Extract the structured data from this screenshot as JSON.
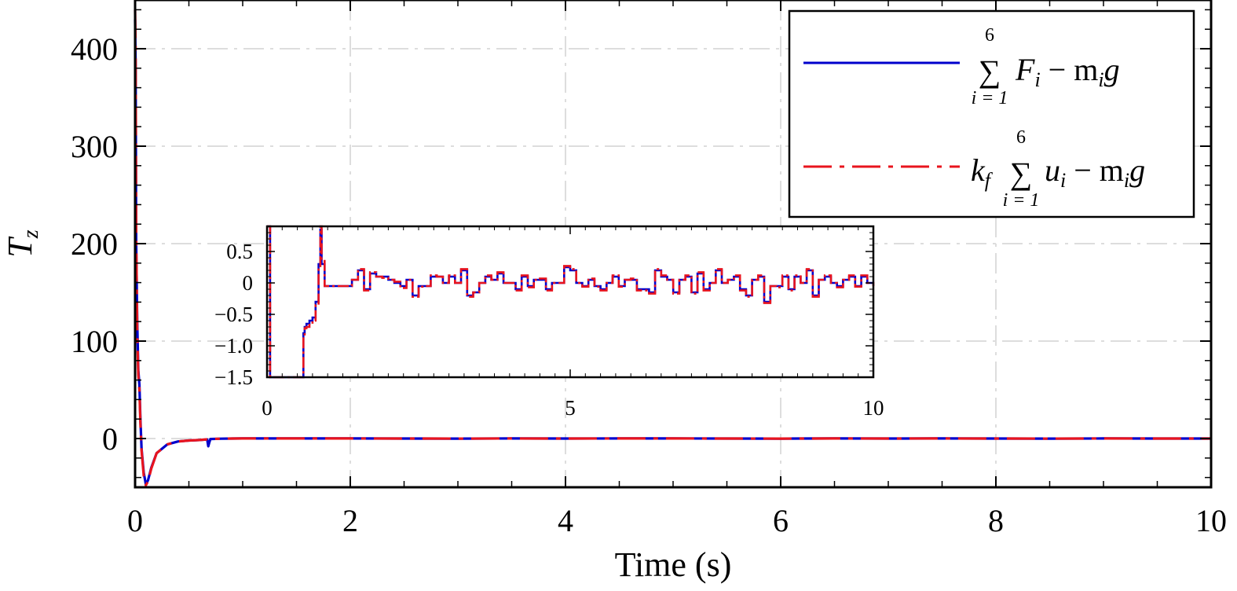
{
  "chart_data": [
    {
      "type": "line",
      "xlabel": "Time (s)",
      "ylabel": "T",
      "ylabel_subscript": "z",
      "xlim": [
        0,
        10
      ],
      "ylim": [
        -50,
        450
      ],
      "xticks": [
        0,
        2,
        4,
        6,
        8,
        10
      ],
      "xtick_labels": [
        "0",
        "2",
        "4",
        "6",
        "8",
        "10"
      ],
      "yticks": [
        0,
        100,
        200,
        300,
        400
      ],
      "ytick_labels": [
        "0",
        "100",
        "200",
        "300",
        "400"
      ],
      "grid": true,
      "legend_position": "top-right",
      "legend": [
        {
          "key": "force",
          "color": "#0000cc",
          "style": "solid",
          "sum_sup": "6",
          "sum_sub": "i = 1",
          "lead": "",
          "lead_sub": "",
          "term": "F",
          "term_sub": "i",
          "rest": " − m",
          "rest_sub": "i",
          "tail": "g"
        },
        {
          "key": "control",
          "color": "#e8141e",
          "style": "dashdot",
          "sum_sup": "6",
          "sum_sub": "i = 1",
          "lead": "k",
          "lead_sub": "f",
          "term": "u",
          "term_sub": "i",
          "rest": " − m",
          "rest_sub": "i",
          "tail": "g"
        }
      ],
      "series": [
        {
          "key": "force",
          "color": "#0000cc",
          "style": "solid",
          "x": [
            0,
            0.005,
            0.01,
            0.02,
            0.03,
            0.04,
            0.05,
            0.06,
            0.08,
            0.1,
            0.12,
            0.15,
            0.2,
            0.3,
            0.4,
            0.5,
            0.6,
            0.67,
            0.68,
            0.69,
            0.7,
            0.8,
            0.9,
            1.0,
            1.5,
            2,
            2.5,
            3,
            3.5,
            4,
            4.5,
            5,
            5.5,
            6,
            6.5,
            7,
            7.5,
            8,
            8.5,
            9,
            9.5,
            10
          ],
          "y": [
            430,
            380,
            200,
            120,
            70,
            55,
            20,
            -10,
            -35,
            -47,
            -43,
            -30,
            -15,
            -6,
            -3,
            -2,
            -1.5,
            -1,
            -8,
            -4,
            -0.5,
            -0.2,
            0,
            0.05,
            0.05,
            0.1,
            0,
            -0.1,
            0.1,
            0,
            0.05,
            0.1,
            0,
            -0.1,
            0.05,
            0,
            0.1,
            0,
            -0.05,
            0.05,
            0,
            0
          ]
        },
        {
          "key": "control",
          "color": "#e8141e",
          "style": "dashdot",
          "x": [
            0,
            0.005,
            0.01,
            0.02,
            0.03,
            0.04,
            0.05,
            0.06,
            0.08,
            0.1,
            0.12,
            0.15,
            0.2,
            0.3,
            0.4,
            0.5,
            0.6,
            0.7,
            0.8,
            0.9,
            1.0,
            1.5,
            2,
            2.5,
            3,
            3.5,
            4,
            4.5,
            5,
            5.5,
            6,
            6.5,
            7,
            7.5,
            8,
            8.5,
            9,
            9.5,
            10
          ],
          "y": [
            440,
            400,
            210,
            110,
            65,
            50,
            15,
            -12,
            -38,
            -48,
            -44,
            -31,
            -15,
            -6,
            -3,
            -2,
            -1.5,
            -0.5,
            -0.2,
            0,
            0.05,
            0.05,
            0.1,
            0,
            -0.1,
            0.1,
            0,
            0.05,
            0.1,
            0,
            -0.1,
            0.05,
            0,
            0.1,
            0,
            -0.05,
            0.05,
            0,
            0
          ]
        }
      ]
    },
    {
      "type": "line",
      "role": "inset",
      "xlim": [
        0,
        10
      ],
      "ylim": [
        -1.5,
        0.9
      ],
      "xticks": [
        0,
        5,
        10
      ],
      "xtick_labels": [
        "0",
        "5",
        "10"
      ],
      "yticks": [
        0.5,
        0,
        -0.5,
        -1.0,
        -1.5
      ],
      "ytick_labels": [
        "0.5",
        "0",
        "−0.5",
        "−1.0",
        "−1.5"
      ],
      "series": [
        {
          "key": "force",
          "color": "#0000cc",
          "style": "solid",
          "x": [
            0,
            0.02,
            0.05,
            0.05,
            0.1,
            0.2,
            0.4,
            0.5,
            0.6,
            0.62,
            0.65,
            0.7,
            0.75,
            0.8,
            0.85,
            0.88,
            0.9,
            0.95,
            1.0,
            1.2,
            1.4,
            1.5,
            1.6,
            1.7,
            1.8,
            1.9,
            2.0,
            2.1,
            2.2,
            2.3,
            2.4,
            2.5,
            2.6,
            2.7,
            2.8,
            2.9,
            3.0,
            3.1,
            3.2,
            3.3,
            3.4,
            3.5,
            3.6,
            3.7,
            3.8,
            3.9,
            4.0,
            4.1,
            4.2,
            4.3,
            4.4,
            4.5,
            4.6,
            4.7,
            4.8,
            4.9,
            5.0,
            5.1,
            5.2,
            5.3,
            5.4,
            5.5,
            5.6,
            5.7,
            5.8,
            5.9,
            6.0,
            6.1,
            6.2,
            6.3,
            6.4,
            6.5,
            6.6,
            6.7,
            6.8,
            6.9,
            7.0,
            7.1,
            7.2,
            7.3,
            7.4,
            7.5,
            7.6,
            7.7,
            7.8,
            7.9,
            8.0,
            8.1,
            8.2,
            8.3,
            8.4,
            8.5,
            8.6,
            8.7,
            8.8,
            8.9,
            9.0,
            9.1,
            9.2,
            9.3,
            9.4,
            9.5,
            9.6,
            9.7,
            9.8,
            9.9,
            10.0
          ],
          "y": [
            0.9,
            0.9,
            -1.5,
            -1.5,
            -1.5,
            -1.5,
            -1.5,
            -1.5,
            -0.8,
            -0.7,
            -0.65,
            -0.6,
            -0.55,
            -0.3,
            0.3,
            0.85,
            0.3,
            -0.05,
            -0.05,
            -0.05,
            0.05,
            0.2,
            -0.1,
            0.15,
            0.1,
            0.1,
            0.05,
            0.0,
            -0.05,
            0.05,
            -0.2,
            -0.05,
            -0.05,
            0.1,
            0.1,
            0.0,
            0.1,
            0.0,
            0.2,
            -0.2,
            -0.15,
            0.0,
            0.1,
            0.05,
            0.15,
            0.0,
            0.0,
            -0.1,
            0.1,
            -0.05,
            0.05,
            0.05,
            -0.1,
            0.0,
            0.0,
            0.25,
            0.2,
            0.0,
            -0.05,
            0.05,
            -0.05,
            -0.1,
            0.0,
            0.1,
            -0.05,
            0.05,
            0.05,
            -0.1,
            -0.1,
            -0.15,
            0.2,
            0.1,
            0.05,
            -0.15,
            0.05,
            0.1,
            -0.15,
            0.15,
            -0.1,
            0.0,
            0.2,
            0.0,
            0.05,
            0.1,
            -0.1,
            -0.2,
            0.05,
            0.1,
            -0.3,
            -0.05,
            -0.05,
            0.1,
            -0.1,
            0.1,
            0.0,
            0.2,
            -0.2,
            0.05,
            0.1,
            0.0,
            -0.05,
            0.05,
            0.1,
            -0.05,
            0.1,
            0.0,
            0.0
          ]
        },
        {
          "key": "control",
          "color": "#e8141e",
          "style": "dashdot",
          "x": [
            0,
            0.02,
            0.05,
            0.05,
            0.1,
            0.2,
            0.4,
            0.5,
            0.6,
            0.62,
            0.65,
            0.7,
            0.75,
            0.8,
            0.85,
            0.88,
            0.9,
            0.95,
            1.0,
            1.2,
            1.4,
            1.5,
            1.6,
            1.7,
            1.8,
            1.9,
            2.0,
            2.1,
            2.2,
            2.3,
            2.4,
            2.5,
            2.6,
            2.7,
            2.8,
            2.9,
            3.0,
            3.1,
            3.2,
            3.3,
            3.4,
            3.5,
            3.6,
            3.7,
            3.8,
            3.9,
            4.0,
            4.1,
            4.2,
            4.3,
            4.4,
            4.5,
            4.6,
            4.7,
            4.8,
            4.9,
            5.0,
            5.1,
            5.2,
            5.3,
            5.4,
            5.5,
            5.6,
            5.7,
            5.8,
            5.9,
            6.0,
            6.1,
            6.2,
            6.3,
            6.4,
            6.5,
            6.6,
            6.7,
            6.8,
            6.9,
            7.0,
            7.1,
            7.2,
            7.3,
            7.4,
            7.5,
            7.6,
            7.7,
            7.8,
            7.9,
            8.0,
            8.1,
            8.2,
            8.3,
            8.4,
            8.5,
            8.6,
            8.7,
            8.8,
            8.9,
            9.0,
            9.1,
            9.2,
            9.3,
            9.4,
            9.5,
            9.6,
            9.7,
            9.8,
            9.9,
            10.0
          ],
          "y": [
            0.9,
            0.9,
            -1.5,
            -1.5,
            -1.5,
            -1.5,
            -1.5,
            -1.5,
            -0.85,
            -0.72,
            -0.7,
            -0.65,
            -0.6,
            -0.35,
            0.25,
            0.9,
            0.35,
            -0.05,
            -0.05,
            -0.05,
            0.05,
            0.22,
            -0.12,
            0.17,
            0.1,
            0.08,
            0.05,
            0.02,
            -0.08,
            0.05,
            -0.22,
            -0.06,
            -0.05,
            0.12,
            0.1,
            0.0,
            0.12,
            0.0,
            0.22,
            -0.22,
            -0.15,
            0.0,
            0.12,
            0.05,
            0.17,
            0.0,
            0.0,
            -0.12,
            0.12,
            -0.07,
            0.05,
            0.07,
            -0.12,
            0.0,
            0.0,
            0.27,
            0.22,
            0.0,
            -0.06,
            0.07,
            -0.06,
            -0.12,
            0.0,
            0.12,
            -0.06,
            0.05,
            0.07,
            -0.12,
            -0.12,
            -0.17,
            0.22,
            0.12,
            0.05,
            -0.17,
            0.05,
            0.12,
            -0.17,
            0.17,
            -0.12,
            0.0,
            0.22,
            0.0,
            0.05,
            0.12,
            -0.12,
            -0.22,
            0.05,
            0.12,
            -0.32,
            -0.05,
            -0.07,
            0.12,
            -0.12,
            0.12,
            0.0,
            0.22,
            -0.22,
            0.05,
            0.12,
            0.0,
            -0.07,
            0.05,
            0.12,
            -0.06,
            0.12,
            0.0,
            -0.05
          ]
        }
      ]
    }
  ]
}
